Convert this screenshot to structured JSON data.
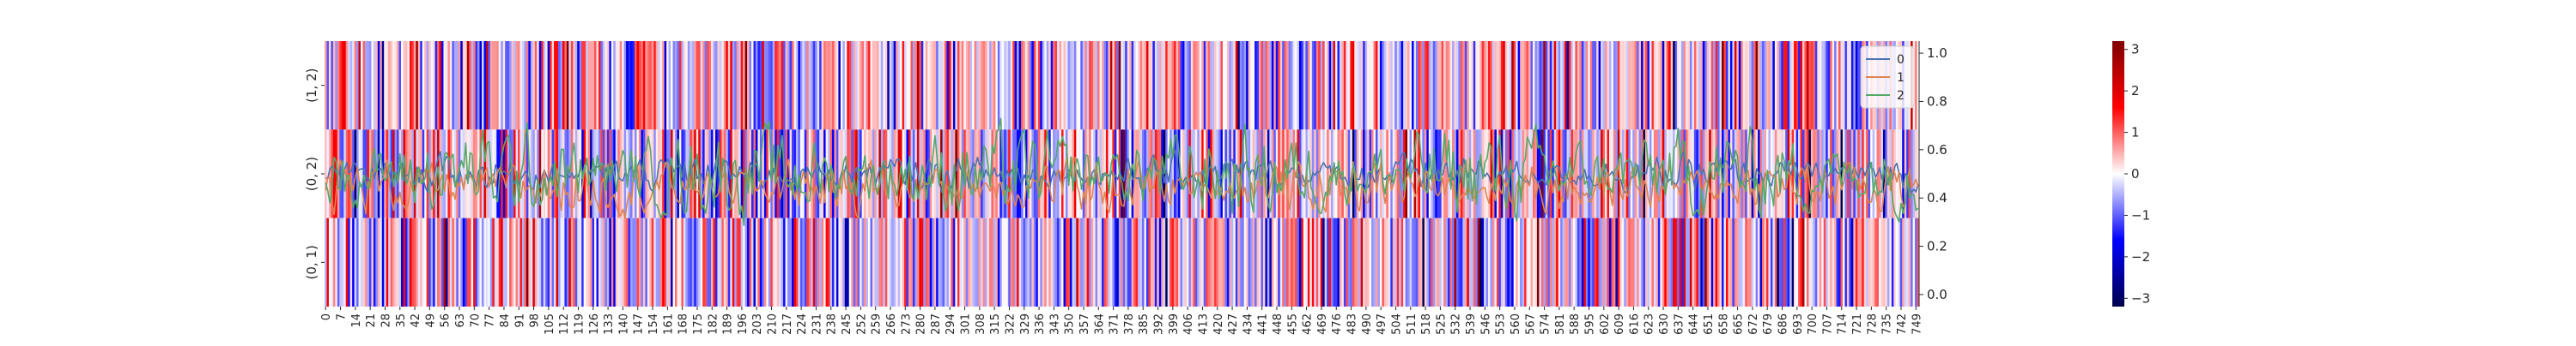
{
  "chart_data": {
    "type": "heatmap",
    "title": "",
    "xlabel": "",
    "ylabel": "",
    "heatmap": {
      "rows": [
        "(1, 2)",
        "(0, 2)",
        "(0, 1)"
      ],
      "n_columns": 751,
      "x_tick_step": 7,
      "x_tick_first": 0,
      "x_tick_last": 749,
      "value_range": [
        -3.2,
        3.2
      ],
      "colormap": "seismic",
      "colorbar_ticks": [
        -3,
        -2,
        -1,
        0,
        1,
        2,
        3
      ],
      "colorbar_tick_labels": [
        "−3",
        "−2",
        "−1",
        "0",
        "1",
        "2",
        "3"
      ]
    },
    "lines": {
      "n_points": 751,
      "ylim": [
        -0.05,
        1.05
      ],
      "y_ticks": [
        0.0,
        0.2,
        0.4,
        0.6,
        0.8,
        1.0
      ],
      "y_tick_labels": [
        "0.0",
        "0.2",
        "0.4",
        "0.6",
        "0.8",
        "1.0"
      ],
      "legend_placement": "top-right",
      "series": [
        {
          "name": "0",
          "color": "#4c72b0",
          "mean": 0.5,
          "amplitude": 0.12
        },
        {
          "name": "1",
          "color": "#dd8452",
          "mean": 0.45,
          "amplitude": 0.18
        },
        {
          "name": "2",
          "color": "#55a868",
          "mean": 0.5,
          "amplitude": 0.3
        }
      ]
    }
  }
}
